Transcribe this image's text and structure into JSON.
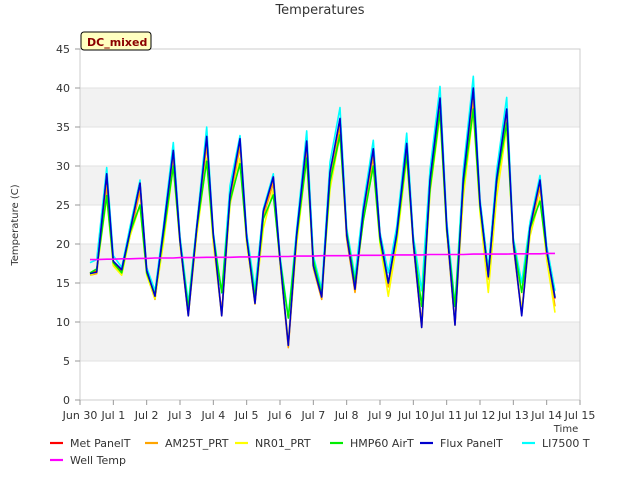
{
  "chart_data": {
    "type": "line",
    "title": "Temperatures",
    "xlabel": "Time",
    "ylabel": "Temperature (C)",
    "badge": "DC_mixed",
    "ylim": [
      0,
      45
    ],
    "yticks": [
      0,
      5,
      10,
      15,
      20,
      25,
      30,
      35,
      40,
      45
    ],
    "xlim": [
      0,
      15
    ],
    "xticks": [
      {
        "pos": 0,
        "label": "Jun 30"
      },
      {
        "pos": 1,
        "label": "Jul 1"
      },
      {
        "pos": 2,
        "label": "Jul 2"
      },
      {
        "pos": 3,
        "label": "Jul 3"
      },
      {
        "pos": 4,
        "label": "Jul 4"
      },
      {
        "pos": 5,
        "label": "Jul 5"
      },
      {
        "pos": 6,
        "label": "Jul 6"
      },
      {
        "pos": 7,
        "label": "Jul 7"
      },
      {
        "pos": 8,
        "label": "Jul 8"
      },
      {
        "pos": 9,
        "label": "Jul 9"
      },
      {
        "pos": 10,
        "label": "Jul 10"
      },
      {
        "pos": 11,
        "label": "Jul 11"
      },
      {
        "pos": 12,
        "label": "Jul 12"
      },
      {
        "pos": 13,
        "label": "Jul 13"
      },
      {
        "pos": 14,
        "label": "Jul 14"
      },
      {
        "pos": 15,
        "label": "Jul 15"
      }
    ],
    "grid": "horizontal bands",
    "legend_position": "bottom",
    "x": [
      0.3,
      0.5,
      0.8,
      1.0,
      1.25,
      1.5,
      1.8,
      2.0,
      2.25,
      2.5,
      2.8,
      3.0,
      3.25,
      3.5,
      3.8,
      4.0,
      4.25,
      4.5,
      4.8,
      5.0,
      5.25,
      5.5,
      5.8,
      6.0,
      6.25,
      6.5,
      6.8,
      7.0,
      7.25,
      7.5,
      7.8,
      8.0,
      8.25,
      8.5,
      8.8,
      9.0,
      9.25,
      9.5,
      9.8,
      10.0,
      10.25,
      10.5,
      10.8,
      11.0,
      11.25,
      11.5,
      11.8,
      12.0,
      12.25,
      12.5,
      12.8,
      13.0,
      13.25,
      13.5,
      13.8,
      14.0,
      14.25
    ],
    "series": [
      {
        "name": "Met PanelT",
        "color": "#ff0000",
        "values": [
          16.2,
          16.5,
          28.8,
          17.5,
          16.6,
          21.5,
          27.8,
          16.5,
          13.1,
          21.4,
          31.8,
          20.3,
          11.0,
          22.0,
          33.4,
          21.0,
          11.0,
          26.0,
          33.2,
          20.6,
          12.5,
          24.0,
          28.5,
          17.9,
          7.0,
          21.0,
          33.0,
          17.1,
          13.1,
          29.0,
          35.9,
          20.9,
          14.0,
          24.0,
          32.0,
          21.0,
          15.0,
          21.0,
          32.7,
          20.1,
          9.5,
          28.0,
          38.5,
          22.0,
          9.8,
          28.0,
          39.5,
          25.0,
          16.0,
          28.0,
          37.0,
          20.0,
          11.2,
          22.0,
          28.0,
          19.0,
          13.0
        ]
      },
      {
        "name": "AM25T_PRT",
        "color": "#ffa500",
        "values": [
          16.0,
          16.2,
          27.5,
          17.3,
          16.3,
          21.0,
          26.8,
          16.2,
          12.9,
          20.8,
          31.0,
          20.0,
          10.8,
          21.5,
          32.8,
          20.7,
          10.8,
          25.5,
          32.5,
          20.3,
          12.3,
          23.5,
          27.8,
          17.6,
          6.7,
          20.6,
          32.2,
          16.9,
          12.9,
          28.3,
          35.0,
          20.6,
          13.8,
          23.5,
          31.2,
          20.7,
          14.5,
          20.6,
          32.0,
          19.8,
          9.3,
          27.5,
          37.5,
          21.6,
          9.6,
          27.5,
          38.4,
          24.5,
          15.5,
          27.5,
          36.2,
          19.7,
          11.0,
          21.6,
          27.3,
          18.7,
          12.0
        ]
      },
      {
        "name": "NR01_PRT",
        "color": "#ffff00",
        "values": [
          16.0,
          16.4,
          26.0,
          17.2,
          16.0,
          21.0,
          25.0,
          16.0,
          13.0,
          20.0,
          30.0,
          20.0,
          11.0,
          21.0,
          31.0,
          20.0,
          11.0,
          25.0,
          31.0,
          20.0,
          12.5,
          22.0,
          27.0,
          17.5,
          7.5,
          20.0,
          31.0,
          17.0,
          13.5,
          27.0,
          34.0,
          21.0,
          14.5,
          23.0,
          30.0,
          20.0,
          13.3,
          20.0,
          31.0,
          20.0,
          9.5,
          26.5,
          36.5,
          21.5,
          10.0,
          26.0,
          37.0,
          24.0,
          13.8,
          26.0,
          35.0,
          20.0,
          11.5,
          21.0,
          26.0,
          18.0,
          11.2
        ]
      },
      {
        "name": "HMP60 AirT",
        "color": "#00ee00",
        "values": [
          16.3,
          16.8,
          26.2,
          17.6,
          16.3,
          21.5,
          25.0,
          16.3,
          13.5,
          21.0,
          30.0,
          20.4,
          11.7,
          22.0,
          30.6,
          21.0,
          13.8,
          25.5,
          30.3,
          20.7,
          13.2,
          23.2,
          26.3,
          18.0,
          10.5,
          21.0,
          31.0,
          18.0,
          13.5,
          28.0,
          34.0,
          21.5,
          15.0,
          23.0,
          30.0,
          20.5,
          15.0,
          21.0,
          31.5,
          20.3,
          12.0,
          27.0,
          37.0,
          21.8,
          12.0,
          27.5,
          37.3,
          24.8,
          16.0,
          28.0,
          35.5,
          20.3,
          13.8,
          22.0,
          25.5,
          19.0,
          13.2
        ]
      },
      {
        "name": "Flux PanelT",
        "color": "#0000cd",
        "values": [
          16.2,
          16.4,
          29.0,
          17.8,
          16.7,
          21.6,
          27.8,
          16.6,
          13.3,
          21.6,
          32.0,
          20.4,
          10.8,
          22.0,
          33.8,
          21.2,
          10.8,
          26.3,
          33.5,
          20.8,
          12.4,
          24.2,
          28.6,
          18.0,
          7.0,
          21.3,
          33.2,
          17.2,
          13.2,
          29.2,
          36.1,
          21.1,
          14.2,
          24.2,
          32.2,
          21.0,
          15.0,
          21.3,
          32.9,
          20.2,
          9.3,
          28.2,
          38.7,
          22.3,
          9.6,
          28.3,
          40.0,
          25.2,
          15.8,
          28.4,
          37.3,
          20.2,
          10.8,
          22.1,
          28.2,
          19.1,
          13.1
        ]
      },
      {
        "name": "LI7500 T",
        "color": "#00ffff",
        "values": [
          17.6,
          18.0,
          29.8,
          18.5,
          17.0,
          22.2,
          28.2,
          17.0,
          14.0,
          22.2,
          33.0,
          21.0,
          12.4,
          22.5,
          35.0,
          21.5,
          13.7,
          27.5,
          33.9,
          21.4,
          14.2,
          24.5,
          29.0,
          18.5,
          10.6,
          22.0,
          34.5,
          18.5,
          14.2,
          30.5,
          37.5,
          22.0,
          15.8,
          25.0,
          33.3,
          21.5,
          16.3,
          22.2,
          34.2,
          21.0,
          14.0,
          29.5,
          40.2,
          23.0,
          12.2,
          29.5,
          41.5,
          25.8,
          16.8,
          29.5,
          38.8,
          20.8,
          15.0,
          22.8,
          28.8,
          19.8,
          14.0
        ]
      },
      {
        "name": "Well Temp",
        "color": "#ff00ff",
        "values": [
          18.0,
          18.0,
          18.05,
          18.05,
          18.1,
          18.1,
          18.15,
          18.15,
          18.2,
          18.2,
          18.2,
          18.25,
          18.25,
          18.25,
          18.3,
          18.3,
          18.3,
          18.3,
          18.35,
          18.35,
          18.35,
          18.4,
          18.4,
          18.4,
          18.4,
          18.45,
          18.45,
          18.45,
          18.5,
          18.5,
          18.5,
          18.5,
          18.55,
          18.55,
          18.55,
          18.55,
          18.6,
          18.6,
          18.6,
          18.6,
          18.6,
          18.65,
          18.65,
          18.65,
          18.65,
          18.65,
          18.7,
          18.7,
          18.7,
          18.7,
          18.7,
          18.75,
          18.75,
          18.75,
          18.75,
          18.8,
          18.8
        ]
      }
    ]
  }
}
